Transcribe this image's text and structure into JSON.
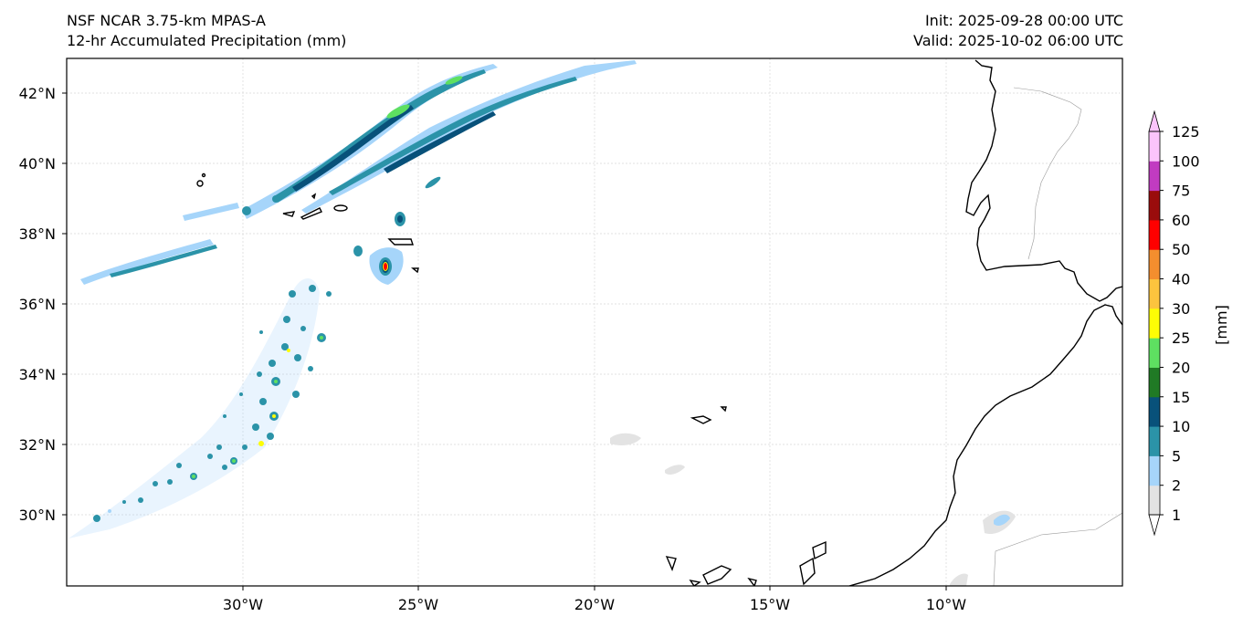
{
  "header": {
    "model": "NSF NCAR 3.75-km MPAS-A",
    "field": "12-hr Accumulated Precipitation (mm)",
    "init": "Init: 2025-09-28 00:00 UTC",
    "valid": "Valid: 2025-10-02 06:00 UTC"
  },
  "map": {
    "lat_labels": [
      "42°N",
      "40°N",
      "38°N",
      "36°N",
      "34°N",
      "32°N",
      "30°N"
    ],
    "lon_labels": [
      "30°W",
      "25°W",
      "20°W",
      "15°W",
      "10°W"
    ]
  },
  "colorbar": {
    "label": "[mm]",
    "ticks": [
      "1",
      "2",
      "5",
      "10",
      "15",
      "20",
      "25",
      "30",
      "40",
      "50",
      "60",
      "75",
      "100",
      "125"
    ],
    "colors": [
      "#e3e3e3",
      "#a6d5fa",
      "#2b93a8",
      "#08517a",
      "#207a25",
      "#5ee061",
      "#fdfd05",
      "#fcc43e",
      "#f48e2e",
      "#ff0000",
      "#9a0c0c",
      "#c13bc1",
      "#fbc4fb"
    ]
  }
}
